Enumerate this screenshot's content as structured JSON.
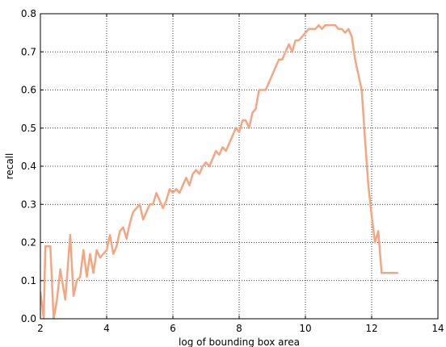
{
  "chart_data": {
    "type": "line",
    "title": "",
    "xlabel": "log of bounding box area",
    "ylabel": "recall",
    "xlim": [
      2,
      14
    ],
    "ylim": [
      0.0,
      0.8
    ],
    "x_ticks": [
      2,
      4,
      6,
      8,
      10,
      12,
      14
    ],
    "x_tick_labels": [
      "2",
      "4",
      "6",
      "8",
      "10",
      "12",
      "14"
    ],
    "y_ticks": [
      0.0,
      0.1,
      0.2,
      0.3,
      0.4,
      0.5,
      0.6,
      0.7,
      0.8
    ],
    "y_tick_labels": [
      "0.0",
      "0.1",
      "0.2",
      "0.3",
      "0.4",
      "0.5",
      "0.6",
      "0.7",
      "0.8"
    ],
    "grid": true,
    "legend": "none",
    "line_color": "#f4a582",
    "series": [
      {
        "x": [
          2.0,
          2.1,
          2.15,
          2.3,
          2.4,
          2.5,
          2.6,
          2.75,
          2.9,
          3.0,
          3.1,
          3.2,
          3.3,
          3.4,
          3.5,
          3.6,
          3.7,
          3.8,
          3.9,
          4.0,
          4.1,
          4.2,
          4.3,
          4.4,
          4.5,
          4.6,
          4.7,
          4.8,
          4.9,
          5.0,
          5.1,
          5.2,
          5.3,
          5.4,
          5.5,
          5.6,
          5.7,
          5.8,
          5.9,
          6.0,
          6.1,
          6.2,
          6.3,
          6.4,
          6.5,
          6.6,
          6.7,
          6.8,
          6.9,
          7.0,
          7.1,
          7.2,
          7.3,
          7.4,
          7.5,
          7.6,
          7.7,
          7.8,
          7.9,
          8.0,
          8.1,
          8.2,
          8.3,
          8.4,
          8.5,
          8.6,
          8.7,
          8.8,
          8.9,
          9.0,
          9.1,
          9.2,
          9.3,
          9.4,
          9.5,
          9.6,
          9.7,
          9.8,
          9.9,
          10.0,
          10.1,
          10.2,
          10.3,
          10.4,
          10.5,
          10.6,
          10.7,
          10.8,
          10.9,
          11.0,
          11.1,
          11.2,
          11.3,
          11.4,
          11.5,
          11.6,
          11.7,
          11.8,
          11.9,
          12.0,
          12.1,
          12.2,
          12.3,
          12.4,
          12.5,
          12.6,
          12.7,
          12.8
        ],
        "y": [
          0.07,
          0.0,
          0.19,
          0.19,
          0.0,
          0.05,
          0.13,
          0.05,
          0.22,
          0.06,
          0.1,
          0.11,
          0.18,
          0.11,
          0.17,
          0.12,
          0.18,
          0.16,
          0.17,
          0.18,
          0.22,
          0.17,
          0.19,
          0.23,
          0.24,
          0.21,
          0.25,
          0.28,
          0.29,
          0.3,
          0.26,
          0.28,
          0.3,
          0.3,
          0.33,
          0.31,
          0.29,
          0.31,
          0.34,
          0.33,
          0.34,
          0.33,
          0.35,
          0.37,
          0.35,
          0.38,
          0.39,
          0.38,
          0.4,
          0.41,
          0.4,
          0.42,
          0.44,
          0.43,
          0.45,
          0.44,
          0.46,
          0.48,
          0.5,
          0.49,
          0.52,
          0.52,
          0.5,
          0.54,
          0.55,
          0.6,
          0.6,
          0.6,
          0.62,
          0.64,
          0.66,
          0.68,
          0.68,
          0.7,
          0.72,
          0.7,
          0.73,
          0.73,
          0.74,
          0.75,
          0.76,
          0.76,
          0.76,
          0.77,
          0.76,
          0.77,
          0.77,
          0.77,
          0.77,
          0.76,
          0.76,
          0.75,
          0.76,
          0.74,
          0.68,
          0.64,
          0.6,
          0.47,
          0.35,
          0.27,
          0.2,
          0.23,
          0.12,
          0.12,
          0.12,
          0.12,
          0.12,
          0.12
        ]
      }
    ]
  }
}
